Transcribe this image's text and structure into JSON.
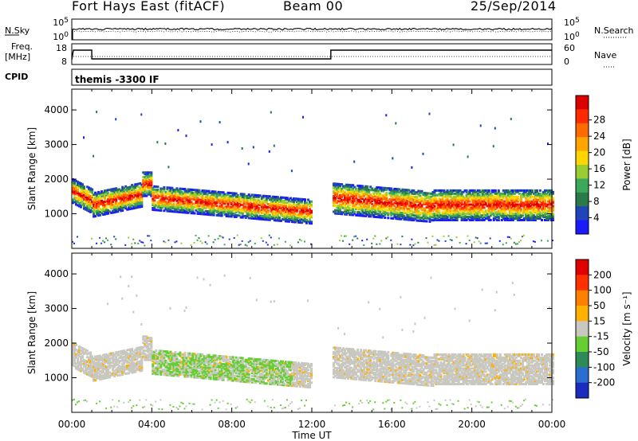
{
  "header": {
    "station": "Fort Hays East (fitACF)",
    "beam": "Beam 00",
    "date": "25/Sep/2014"
  },
  "side_labels": {
    "nsky": "N.Sky",
    "nsearch": "N.Search",
    "freq": "Freq.",
    "freq_unit": "[MHz]",
    "nave": "Nave",
    "cpid": "CPID",
    "cpid_value": "themis -3300 IF"
  },
  "noise_axis": {
    "left_ticks": [
      "10^5",
      "10^0"
    ],
    "right_ticks": [
      "10^5",
      "10^0"
    ]
  },
  "freq_axis": {
    "left_ticks": [
      "18",
      "8"
    ],
    "right_ticks": [
      "60",
      "0"
    ]
  },
  "chart_data": [
    {
      "type": "heatmap",
      "name": "power",
      "xlabel": "",
      "ylabel": "Slant Range [km]",
      "yticks": [
        1000,
        2000,
        3000,
        4000
      ],
      "ylim": [
        0,
        4600
      ],
      "xlim": [
        0,
        24
      ],
      "colorbar": {
        "label": "Power [dB]",
        "ticks": [
          "4",
          "8",
          "12",
          "16",
          "20",
          "24",
          "28"
        ],
        "colors": [
          "#1a1aff",
          "#2244bb",
          "#2a7a4a",
          "#3da85a",
          "#9acd32",
          "#ffd700",
          "#ffa500",
          "#ff6a00",
          "#ff2a00",
          "#dd0000"
        ]
      }
    },
    {
      "type": "heatmap",
      "name": "velocity",
      "xlabel": "Time UT",
      "ylabel": "Slant Range [km]",
      "yticks": [
        1000,
        2000,
        3000,
        4000
      ],
      "ylim": [
        0,
        4600
      ],
      "xlim": [
        0,
        24
      ],
      "xticks": [
        "00:00",
        "04:00",
        "08:00",
        "12:00",
        "16:00",
        "20:00",
        "00:00"
      ],
      "colorbar": {
        "label": "Velocity [m s⁻¹]",
        "ticks": [
          "200",
          "100",
          "50",
          "15",
          "-15",
          "-50",
          "-100",
          "-200"
        ],
        "colors": [
          "#1a2bbf",
          "#2a6fd0",
          "#2e8b57",
          "#66cd33",
          "#c8c8c0",
          "#ffb000",
          "#ff7f00",
          "#ff3000",
          "#e00000"
        ]
      }
    }
  ]
}
